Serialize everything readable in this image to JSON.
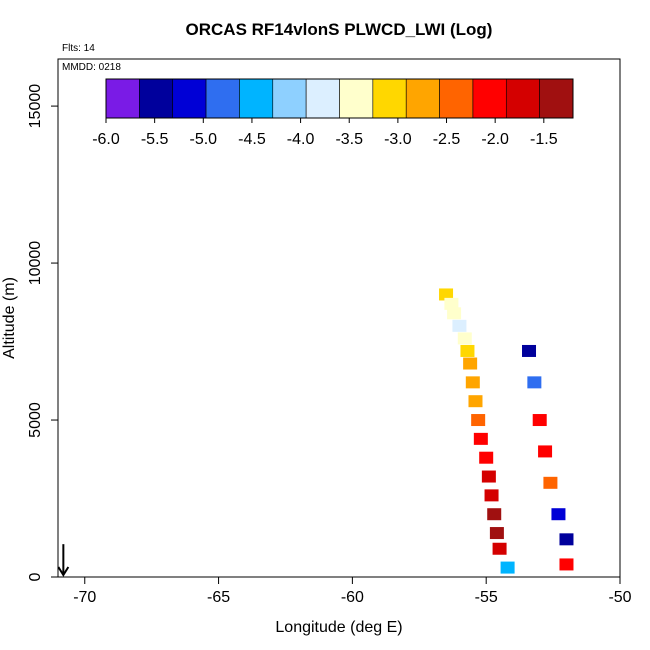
{
  "chart_data": {
    "type": "heatmap",
    "title": "ORCAS RF14vlonS PLWCD_LWI (Log)",
    "annotations": [
      "Flts: 14",
      "MMDD: 0218"
    ],
    "xlabel": "Longitude (deg E)",
    "ylabel": "Altitude (m)",
    "xlim": [
      -71,
      -50
    ],
    "ylim": [
      0,
      16500
    ],
    "x_ticks": [
      -70,
      -65,
      -60,
      -55,
      -50
    ],
    "y_ticks": [
      0,
      5000,
      10000,
      15000
    ],
    "colorbar": {
      "placement": "top-inset",
      "range": [
        -6.0,
        -1.2
      ],
      "tick_values": [
        -6.0,
        -5.5,
        -5.0,
        -4.5,
        -4.0,
        -3.5,
        -3.0,
        -2.5,
        -2.0,
        -1.5
      ],
      "tick_labels": [
        "-6.0",
        "-5.5",
        "-5.0",
        "-4.5",
        "-4.0",
        "-3.5",
        "-3.0",
        "-2.5",
        "-2.0",
        "-1.5"
      ],
      "colors": [
        "#7a1be6",
        "#00009c",
        "#0000d6",
        "#2f6ef0",
        "#00b4ff",
        "#8ed0ff",
        "#dcefff",
        "#ffffcc",
        "#ffd700",
        "#ffa500",
        "#ff6400",
        "#ff0000",
        "#d40000",
        "#a01010"
      ]
    },
    "grid": false,
    "cells": [
      {
        "lon": -56.5,
        "alt": 9000,
        "v": -3.0
      },
      {
        "lon": -56.3,
        "alt": 8700,
        "v": -3.4
      },
      {
        "lon": -56.2,
        "alt": 8400,
        "v": -3.6
      },
      {
        "lon": -56.0,
        "alt": 8000,
        "v": -3.8
      },
      {
        "lon": -55.8,
        "alt": 7600,
        "v": -3.5
      },
      {
        "lon": -55.7,
        "alt": 7200,
        "v": -3.0
      },
      {
        "lon": -55.6,
        "alt": 6800,
        "v": -2.8
      },
      {
        "lon": -55.5,
        "alt": 6200,
        "v": -2.7
      },
      {
        "lon": -55.4,
        "alt": 5600,
        "v": -2.6
      },
      {
        "lon": -55.3,
        "alt": 5000,
        "v": -2.3
      },
      {
        "lon": -55.2,
        "alt": 4400,
        "v": -2.1
      },
      {
        "lon": -55.0,
        "alt": 3800,
        "v": -1.9
      },
      {
        "lon": -54.9,
        "alt": 3200,
        "v": -1.8
      },
      {
        "lon": -54.8,
        "alt": 2600,
        "v": -1.6
      },
      {
        "lon": -54.7,
        "alt": 2000,
        "v": -1.5
      },
      {
        "lon": -54.6,
        "alt": 1400,
        "v": -1.5
      },
      {
        "lon": -54.5,
        "alt": 900,
        "v": -1.7
      },
      {
        "lon": -54.2,
        "alt": 300,
        "v": -4.6
      },
      {
        "lon": -53.4,
        "alt": 7200,
        "v": -5.5
      },
      {
        "lon": -53.2,
        "alt": 6200,
        "v": -4.8
      },
      {
        "lon": -53.0,
        "alt": 5000,
        "v": -2.2
      },
      {
        "lon": -52.8,
        "alt": 4000,
        "v": -1.9
      },
      {
        "lon": -52.6,
        "alt": 3000,
        "v": -2.3
      },
      {
        "lon": -52.3,
        "alt": 2000,
        "v": -5.2
      },
      {
        "lon": -52.0,
        "alt": 1200,
        "v": -5.4
      },
      {
        "lon": -52.0,
        "alt": 400,
        "v": -2.0
      }
    ],
    "arrow_marker": {
      "lon": -70.8,
      "alt_top": 600,
      "alt_bottom": 0
    }
  }
}
